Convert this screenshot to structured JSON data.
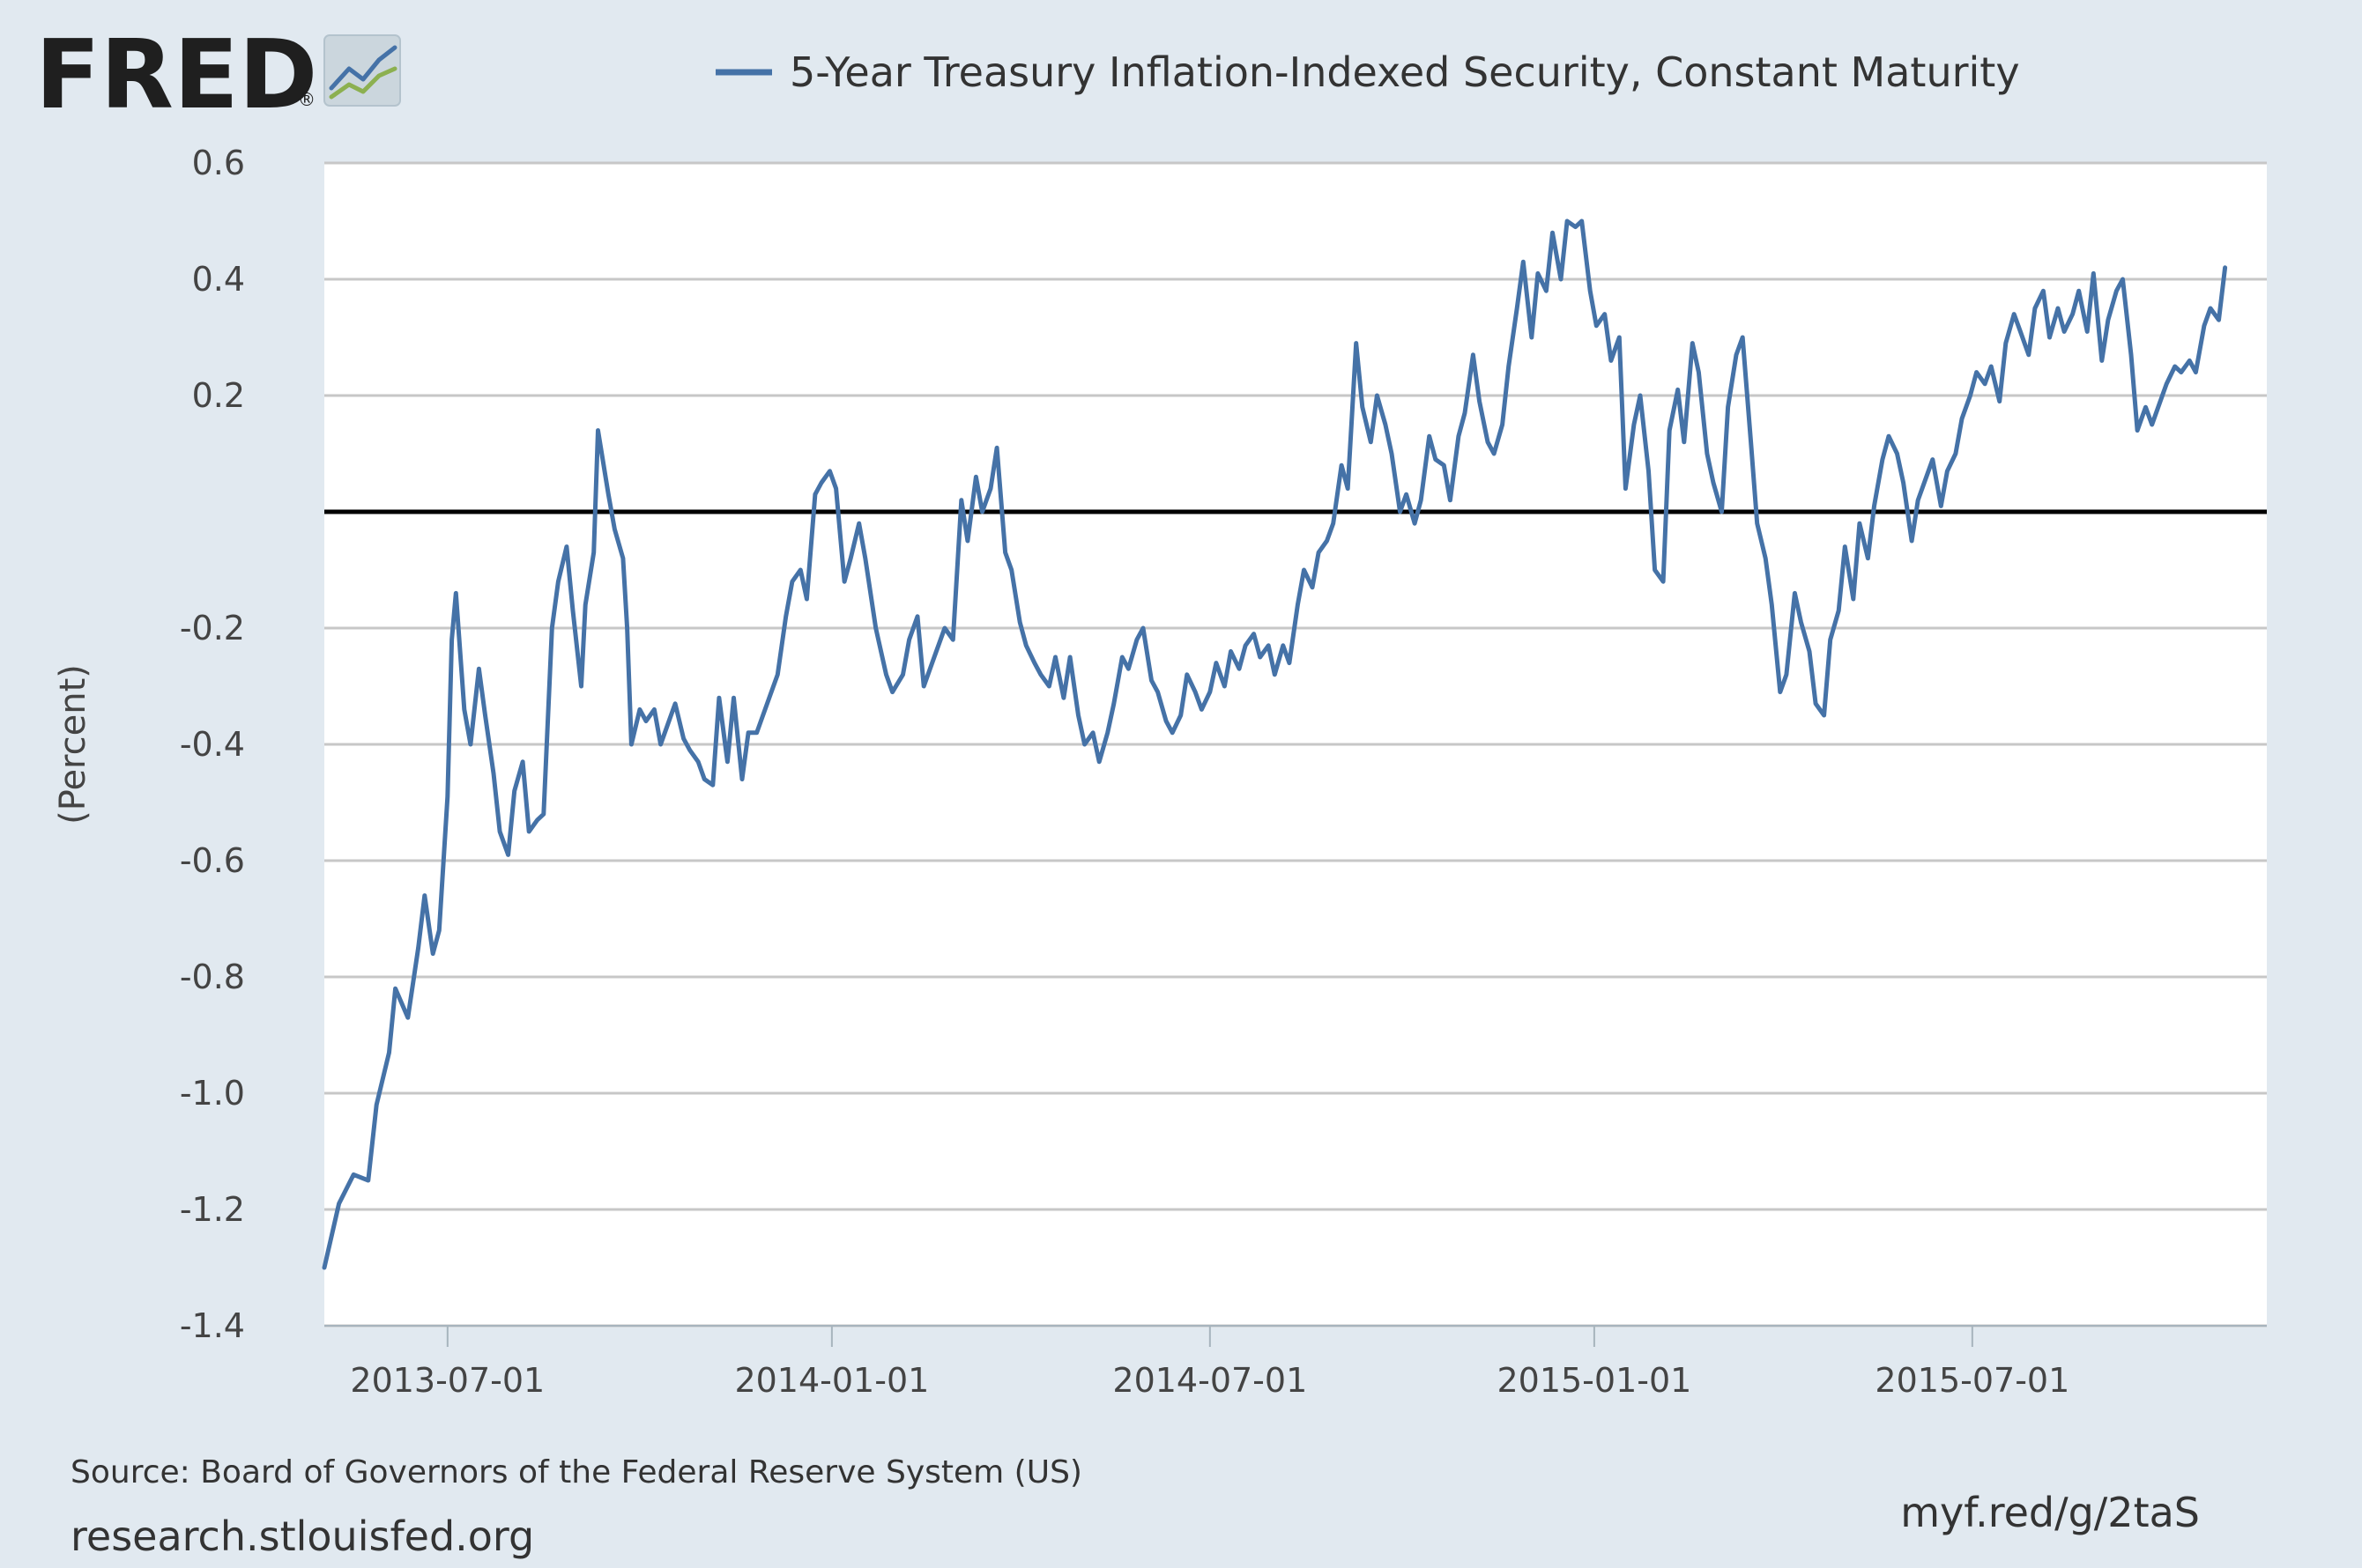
{
  "brand": {
    "logo_text": "FRED",
    "registered_mark": "®"
  },
  "legend": {
    "label": "5-Year Treasury Inflation-Indexed Security, Constant Maturity",
    "color": "#4572a7"
  },
  "y_axis_label": "(Percent)",
  "footer": {
    "source": "Source: Board of Governors of the Federal Reserve System (US)",
    "site": "research.stlouisfed.org",
    "short_link": "myf.red/g/2taS"
  },
  "chart_data": {
    "type": "line",
    "title": "",
    "xlabel": "",
    "ylabel": "(Percent)",
    "x_ticks": [
      "2013-07-01",
      "2014-01-01",
      "2014-07-01",
      "2015-01-01",
      "2015-07-01"
    ],
    "y_ticks": [
      "0.6",
      "0.4",
      "0.2",
      "-0.2",
      "-0.4",
      "-0.6",
      "-0.8",
      "-1.0",
      "-1.2",
      "-1.4"
    ],
    "ylim": [
      -1.4,
      0.6
    ],
    "xlim": [
      "2013-05-03",
      "2015-11-19"
    ],
    "grid": true,
    "zero_line": true,
    "legend_position": "top",
    "series": [
      {
        "name": "5-Year Treasury Inflation-Indexed Security, Constant Maturity",
        "color": "#4572a7",
        "points": [
          [
            "2013-05-03",
            -1.3
          ],
          [
            "2013-05-10",
            -1.19
          ],
          [
            "2013-05-17",
            -1.14
          ],
          [
            "2013-05-24",
            -1.15
          ],
          [
            "2013-05-28",
            -1.02
          ],
          [
            "2013-06-03",
            -0.93
          ],
          [
            "2013-06-06",
            -0.82
          ],
          [
            "2013-06-12",
            -0.87
          ],
          [
            "2013-06-17",
            -0.75
          ],
          [
            "2013-06-20",
            -0.66
          ],
          [
            "2013-06-24",
            -0.76
          ],
          [
            "2013-06-27",
            -0.72
          ],
          [
            "2013-07-01",
            -0.49
          ],
          [
            "2013-07-03",
            -0.22
          ],
          [
            "2013-07-05",
            -0.14
          ],
          [
            "2013-07-09",
            -0.34
          ],
          [
            "2013-07-12",
            -0.4
          ],
          [
            "2013-07-16",
            -0.27
          ],
          [
            "2013-07-19",
            -0.35
          ],
          [
            "2013-07-23",
            -0.45
          ],
          [
            "2013-07-26",
            -0.55
          ],
          [
            "2013-07-30",
            -0.59
          ],
          [
            "2013-08-02",
            -0.48
          ],
          [
            "2013-08-06",
            -0.43
          ],
          [
            "2013-08-09",
            -0.55
          ],
          [
            "2013-08-13",
            -0.53
          ],
          [
            "2013-08-16",
            -0.52
          ],
          [
            "2013-08-20",
            -0.2
          ],
          [
            "2013-08-23",
            -0.12
          ],
          [
            "2013-08-27",
            -0.06
          ],
          [
            "2013-08-30",
            -0.17
          ],
          [
            "2013-09-03",
            -0.3
          ],
          [
            "2013-09-05",
            -0.16
          ],
          [
            "2013-09-09",
            -0.07
          ],
          [
            "2013-09-11",
            0.14
          ],
          [
            "2013-09-16",
            0.03
          ],
          [
            "2013-09-19",
            -0.03
          ],
          [
            "2013-09-23",
            -0.08
          ],
          [
            "2013-09-25",
            -0.2
          ],
          [
            "2013-09-27",
            -0.4
          ],
          [
            "2013-10-01",
            -0.34
          ],
          [
            "2013-10-04",
            -0.36
          ],
          [
            "2013-10-08",
            -0.34
          ],
          [
            "2013-10-11",
            -0.4
          ],
          [
            "2013-10-15",
            -0.36
          ],
          [
            "2013-10-18",
            -0.33
          ],
          [
            "2013-10-22",
            -0.39
          ],
          [
            "2013-10-25",
            -0.41
          ],
          [
            "2013-10-29",
            -0.43
          ],
          [
            "2013-11-01",
            -0.46
          ],
          [
            "2013-11-05",
            -0.47
          ],
          [
            "2013-11-08",
            -0.32
          ],
          [
            "2013-11-12",
            -0.43
          ],
          [
            "2013-11-15",
            -0.32
          ],
          [
            "2013-11-19",
            -0.46
          ],
          [
            "2013-11-22",
            -0.38
          ],
          [
            "2013-11-26",
            -0.38
          ],
          [
            "2013-12-02",
            -0.32
          ],
          [
            "2013-12-06",
            -0.28
          ],
          [
            "2013-12-10",
            -0.18
          ],
          [
            "2013-12-13",
            -0.12
          ],
          [
            "2013-12-17",
            -0.1
          ],
          [
            "2013-12-20",
            -0.15
          ],
          [
            "2013-12-24",
            0.03
          ],
          [
            "2013-12-27",
            0.05
          ],
          [
            "2013-12-31",
            0.07
          ],
          [
            "2014-01-03",
            0.04
          ],
          [
            "2014-01-07",
            -0.12
          ],
          [
            "2014-01-10",
            -0.08
          ],
          [
            "2014-01-14",
            -0.02
          ],
          [
            "2014-01-17",
            -0.08
          ],
          [
            "2014-01-22",
            -0.2
          ],
          [
            "2014-01-27",
            -0.28
          ],
          [
            "2014-01-30",
            -0.31
          ],
          [
            "2014-02-04",
            -0.28
          ],
          [
            "2014-02-07",
            -0.22
          ],
          [
            "2014-02-11",
            -0.18
          ],
          [
            "2014-02-14",
            -0.3
          ],
          [
            "2014-02-19",
            -0.25
          ],
          [
            "2014-02-24",
            -0.2
          ],
          [
            "2014-02-28",
            -0.22
          ],
          [
            "2014-03-04",
            0.02
          ],
          [
            "2014-03-07",
            -0.05
          ],
          [
            "2014-03-11",
            0.06
          ],
          [
            "2014-03-14",
            0.0
          ],
          [
            "2014-03-18",
            0.04
          ],
          [
            "2014-03-21",
            0.11
          ],
          [
            "2014-03-25",
            -0.07
          ],
          [
            "2014-03-28",
            -0.1
          ],
          [
            "2014-04-01",
            -0.19
          ],
          [
            "2014-04-04",
            -0.23
          ],
          [
            "2014-04-08",
            -0.26
          ],
          [
            "2014-04-11",
            -0.28
          ],
          [
            "2014-04-15",
            -0.3
          ],
          [
            "2014-04-18",
            -0.25
          ],
          [
            "2014-04-22",
            -0.32
          ],
          [
            "2014-04-25",
            -0.25
          ],
          [
            "2014-04-29",
            -0.35
          ],
          [
            "2014-05-02",
            -0.4
          ],
          [
            "2014-05-06",
            -0.38
          ],
          [
            "2014-05-09",
            -0.43
          ],
          [
            "2014-05-13",
            -0.38
          ],
          [
            "2014-05-16",
            -0.33
          ],
          [
            "2014-05-20",
            -0.25
          ],
          [
            "2014-05-23",
            -0.27
          ],
          [
            "2014-05-27",
            -0.22
          ],
          [
            "2014-05-30",
            -0.2
          ],
          [
            "2014-06-03",
            -0.29
          ],
          [
            "2014-06-06",
            -0.31
          ],
          [
            "2014-06-10",
            -0.36
          ],
          [
            "2014-06-13",
            -0.38
          ],
          [
            "2014-06-17",
            -0.35
          ],
          [
            "2014-06-20",
            -0.28
          ],
          [
            "2014-06-24",
            -0.31
          ],
          [
            "2014-06-27",
            -0.34
          ],
          [
            "2014-07-01",
            -0.31
          ],
          [
            "2014-07-04",
            -0.26
          ],
          [
            "2014-07-08",
            -0.3
          ],
          [
            "2014-07-11",
            -0.24
          ],
          [
            "2014-07-15",
            -0.27
          ],
          [
            "2014-07-18",
            -0.23
          ],
          [
            "2014-07-22",
            -0.21
          ],
          [
            "2014-07-25",
            -0.25
          ],
          [
            "2014-07-29",
            -0.23
          ],
          [
            "2014-08-01",
            -0.28
          ],
          [
            "2014-08-05",
            -0.23
          ],
          [
            "2014-08-08",
            -0.26
          ],
          [
            "2014-08-12",
            -0.16
          ],
          [
            "2014-08-15",
            -0.1
          ],
          [
            "2014-08-19",
            -0.13
          ],
          [
            "2014-08-22",
            -0.07
          ],
          [
            "2014-08-26",
            -0.05
          ],
          [
            "2014-08-29",
            -0.02
          ],
          [
            "2014-09-02",
            0.08
          ],
          [
            "2014-09-05",
            0.04
          ],
          [
            "2014-09-09",
            0.29
          ],
          [
            "2014-09-12",
            0.18
          ],
          [
            "2014-09-16",
            0.12
          ],
          [
            "2014-09-19",
            0.2
          ],
          [
            "2014-09-23",
            0.15
          ],
          [
            "2014-09-26",
            0.1
          ],
          [
            "2014-09-30",
            0.0
          ],
          [
            "2014-10-03",
            0.03
          ],
          [
            "2014-10-07",
            -0.02
          ],
          [
            "2014-10-10",
            0.02
          ],
          [
            "2014-10-14",
            0.13
          ],
          [
            "2014-10-17",
            0.09
          ],
          [
            "2014-10-21",
            0.08
          ],
          [
            "2014-10-24",
            0.02
          ],
          [
            "2014-10-28",
            0.13
          ],
          [
            "2014-10-31",
            0.17
          ],
          [
            "2014-11-04",
            0.27
          ],
          [
            "2014-11-07",
            0.19
          ],
          [
            "2014-11-11",
            0.12
          ],
          [
            "2014-11-14",
            0.1
          ],
          [
            "2014-11-18",
            0.15
          ],
          [
            "2014-11-21",
            0.25
          ],
          [
            "2014-11-25",
            0.35
          ],
          [
            "2014-11-28",
            0.43
          ],
          [
            "2014-12-02",
            0.3
          ],
          [
            "2014-12-05",
            0.41
          ],
          [
            "2014-12-09",
            0.38
          ],
          [
            "2014-12-12",
            0.48
          ],
          [
            "2014-12-16",
            0.4
          ],
          [
            "2014-12-19",
            0.5
          ],
          [
            "2014-12-23",
            0.49
          ],
          [
            "2014-12-26",
            0.5
          ],
          [
            "2014-12-30",
            0.38
          ],
          [
            "2015-01-02",
            0.32
          ],
          [
            "2015-01-06",
            0.34
          ],
          [
            "2015-01-09",
            0.26
          ],
          [
            "2015-01-13",
            0.3
          ],
          [
            "2015-01-16",
            0.04
          ],
          [
            "2015-01-20",
            0.15
          ],
          [
            "2015-01-23",
            0.2
          ],
          [
            "2015-01-27",
            0.07
          ],
          [
            "2015-01-30",
            -0.1
          ],
          [
            "2015-02-03",
            -0.12
          ],
          [
            "2015-02-06",
            0.14
          ],
          [
            "2015-02-10",
            0.21
          ],
          [
            "2015-02-13",
            0.12
          ],
          [
            "2015-02-17",
            0.29
          ],
          [
            "2015-02-20",
            0.24
          ],
          [
            "2015-02-24",
            0.1
          ],
          [
            "2015-02-27",
            0.05
          ],
          [
            "2015-03-03",
            0.0
          ],
          [
            "2015-03-06",
            0.18
          ],
          [
            "2015-03-10",
            0.27
          ],
          [
            "2015-03-13",
            0.3
          ],
          [
            "2015-03-17",
            0.12
          ],
          [
            "2015-03-20",
            -0.02
          ],
          [
            "2015-03-24",
            -0.08
          ],
          [
            "2015-03-27",
            -0.16
          ],
          [
            "2015-03-31",
            -0.31
          ],
          [
            "2015-04-03",
            -0.28
          ],
          [
            "2015-04-07",
            -0.14
          ],
          [
            "2015-04-10",
            -0.19
          ],
          [
            "2015-04-14",
            -0.24
          ],
          [
            "2015-04-17",
            -0.33
          ],
          [
            "2015-04-21",
            -0.35
          ],
          [
            "2015-04-24",
            -0.22
          ],
          [
            "2015-04-28",
            -0.17
          ],
          [
            "2015-05-01",
            -0.06
          ],
          [
            "2015-05-05",
            -0.15
          ],
          [
            "2015-05-08",
            -0.02
          ],
          [
            "2015-05-12",
            -0.08
          ],
          [
            "2015-05-15",
            0.01
          ],
          [
            "2015-05-19",
            0.09
          ],
          [
            "2015-05-22",
            0.13
          ],
          [
            "2015-05-26",
            0.1
          ],
          [
            "2015-05-29",
            0.05
          ],
          [
            "2015-06-02",
            -0.05
          ],
          [
            "2015-06-05",
            0.02
          ],
          [
            "2015-06-09",
            0.06
          ],
          [
            "2015-06-12",
            0.09
          ],
          [
            "2015-06-16",
            0.01
          ],
          [
            "2015-06-19",
            0.07
          ],
          [
            "2015-06-23",
            0.1
          ],
          [
            "2015-06-26",
            0.16
          ],
          [
            "2015-06-30",
            0.2
          ],
          [
            "2015-07-03",
            0.24
          ],
          [
            "2015-07-07",
            0.22
          ],
          [
            "2015-07-10",
            0.25
          ],
          [
            "2015-07-14",
            0.19
          ],
          [
            "2015-07-17",
            0.29
          ],
          [
            "2015-07-21",
            0.34
          ],
          [
            "2015-07-24",
            0.31
          ],
          [
            "2015-07-28",
            0.27
          ],
          [
            "2015-07-31",
            0.35
          ],
          [
            "2015-08-04",
            0.38
          ],
          [
            "2015-08-07",
            0.3
          ],
          [
            "2015-08-11",
            0.35
          ],
          [
            "2015-08-14",
            0.31
          ],
          [
            "2015-08-18",
            0.34
          ],
          [
            "2015-08-21",
            0.38
          ],
          [
            "2015-08-25",
            0.31
          ],
          [
            "2015-08-28",
            0.41
          ],
          [
            "2015-09-01",
            0.26
          ],
          [
            "2015-09-04",
            0.33
          ],
          [
            "2015-09-08",
            0.38
          ],
          [
            "2015-09-11",
            0.4
          ],
          [
            "2015-09-15",
            0.27
          ],
          [
            "2015-09-18",
            0.14
          ],
          [
            "2015-09-22",
            0.18
          ],
          [
            "2015-09-25",
            0.15
          ],
          [
            "2015-09-29",
            0.19
          ],
          [
            "2015-10-02",
            0.22
          ],
          [
            "2015-10-06",
            0.25
          ],
          [
            "2015-10-09",
            0.24
          ],
          [
            "2015-10-13",
            0.26
          ],
          [
            "2015-10-16",
            0.24
          ],
          [
            "2015-10-20",
            0.32
          ],
          [
            "2015-10-23",
            0.35
          ],
          [
            "2015-10-27",
            0.33
          ],
          [
            "2015-10-30",
            0.42
          ]
        ]
      }
    ]
  }
}
